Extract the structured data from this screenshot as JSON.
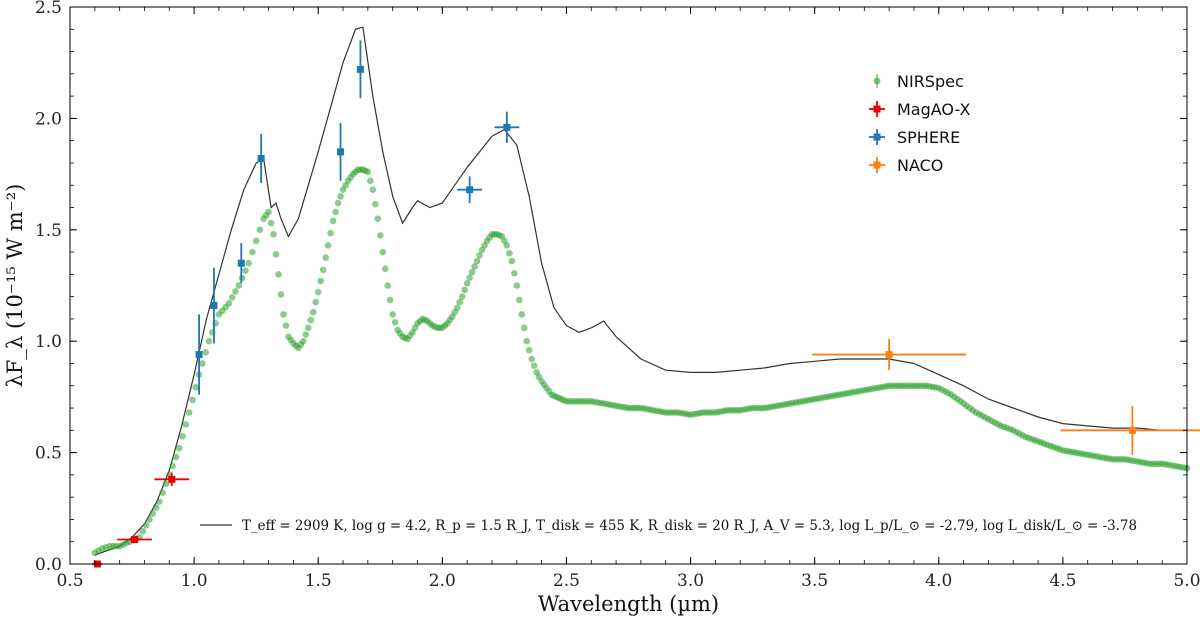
{
  "chart_data": {
    "type": "scatter",
    "title": "",
    "xlabel": "Wavelength (µm)",
    "ylabel": "λF_λ (10⁻¹⁵ W m⁻²)",
    "xlim": [
      0.5,
      5.0
    ],
    "ylim": [
      0.0,
      2.5
    ],
    "xticks": [
      0.5,
      1.0,
      1.5,
      2.0,
      2.5,
      3.0,
      3.5,
      4.0,
      4.5,
      5.0
    ],
    "xtick_labels": [
      "0.5",
      "1.0",
      "1.5",
      "2.0",
      "2.5",
      "3.0",
      "3.5",
      "4.0",
      "4.5",
      "5.0"
    ],
    "yticks": [
      0.0,
      0.5,
      1.0,
      1.5,
      2.0,
      2.5
    ],
    "ytick_labels": [
      "0.0",
      "0.5",
      "1.0",
      "1.5",
      "2.0",
      "2.5"
    ],
    "grid": false,
    "legend_position": "upper-right",
    "model": {
      "label": "T_eff = 2909 K, log g = 4.2, R_p = 1.5 R_J, T_disk = 455 K, R_disk = 20 R_J, A_V = 5.3, log L_p/L_⊙ = -2.79, log L_disk/L_⊙ = -3.78",
      "color": "#333333",
      "x": [
        0.6,
        0.65,
        0.7,
        0.75,
        0.8,
        0.85,
        0.9,
        0.95,
        1.0,
        1.05,
        1.1,
        1.15,
        1.2,
        1.25,
        1.28,
        1.31,
        1.33,
        1.35,
        1.38,
        1.42,
        1.46,
        1.5,
        1.55,
        1.6,
        1.65,
        1.68,
        1.72,
        1.76,
        1.8,
        1.84,
        1.88,
        1.9,
        1.95,
        2.0,
        2.05,
        2.1,
        2.15,
        2.2,
        2.25,
        2.3,
        2.35,
        2.4,
        2.45,
        2.5,
        2.55,
        2.6,
        2.65,
        2.7,
        2.8,
        2.9,
        3.0,
        3.1,
        3.2,
        3.3,
        3.4,
        3.5,
        3.6,
        3.7,
        3.8,
        3.9,
        4.0,
        4.1,
        4.2,
        4.3,
        4.4,
        4.5,
        4.6,
        4.7,
        4.8,
        4.9,
        5.0
      ],
      "y": [
        0.04,
        0.06,
        0.08,
        0.12,
        0.18,
        0.28,
        0.42,
        0.62,
        0.85,
        1.1,
        1.3,
        1.5,
        1.68,
        1.8,
        1.82,
        1.6,
        1.62,
        1.55,
        1.47,
        1.55,
        1.7,
        1.85,
        2.05,
        2.25,
        2.4,
        2.41,
        2.1,
        1.85,
        1.65,
        1.53,
        1.6,
        1.63,
        1.6,
        1.62,
        1.7,
        1.78,
        1.85,
        1.92,
        1.95,
        1.88,
        1.65,
        1.35,
        1.15,
        1.07,
        1.04,
        1.06,
        1.09,
        1.02,
        0.92,
        0.87,
        0.86,
        0.86,
        0.87,
        0.88,
        0.9,
        0.91,
        0.92,
        0.92,
        0.92,
        0.9,
        0.85,
        0.8,
        0.74,
        0.7,
        0.66,
        0.63,
        0.62,
        0.61,
        0.61,
        0.6,
        0.6
      ]
    },
    "series": [
      {
        "name": "NIRSpec",
        "color": "#2ca02c",
        "x": [
          0.6,
          0.63,
          0.66,
          0.7,
          0.74,
          0.78,
          0.82,
          0.86,
          0.9,
          0.94,
          0.98,
          1.02,
          1.06,
          1.1,
          1.14,
          1.18,
          1.22,
          1.25,
          1.28,
          1.3,
          1.32,
          1.34,
          1.36,
          1.38,
          1.4,
          1.42,
          1.44,
          1.46,
          1.48,
          1.5,
          1.52,
          1.54,
          1.56,
          1.58,
          1.6,
          1.62,
          1.64,
          1.66,
          1.68,
          1.7,
          1.72,
          1.74,
          1.76,
          1.78,
          1.8,
          1.82,
          1.84,
          1.86,
          1.88,
          1.9,
          1.92,
          1.94,
          1.96,
          1.98,
          2.0,
          2.02,
          2.04,
          2.06,
          2.08,
          2.1,
          2.12,
          2.14,
          2.16,
          2.18,
          2.2,
          2.22,
          2.24,
          2.26,
          2.28,
          2.3,
          2.32,
          2.34,
          2.36,
          2.38,
          2.4,
          2.42,
          2.44,
          2.46,
          2.48,
          2.5,
          2.55,
          2.6,
          2.65,
          2.7,
          2.75,
          2.8,
          2.85,
          2.9,
          2.95,
          3.0,
          3.05,
          3.1,
          3.15,
          3.2,
          3.25,
          3.3,
          3.35,
          3.4,
          3.45,
          3.5,
          3.55,
          3.6,
          3.65,
          3.7,
          3.75,
          3.8,
          3.85,
          3.9,
          3.95,
          4.0,
          4.05,
          4.1,
          4.15,
          4.2,
          4.25,
          4.3,
          4.35,
          4.4,
          4.45,
          4.5,
          4.55,
          4.6,
          4.65,
          4.7,
          4.75,
          4.8,
          4.85,
          4.9,
          4.95,
          5.0
        ],
        "y": [
          0.05,
          0.07,
          0.08,
          0.08,
          0.1,
          0.12,
          0.2,
          0.28,
          0.4,
          0.52,
          0.68,
          0.85,
          1.0,
          1.12,
          1.17,
          1.25,
          1.35,
          1.45,
          1.55,
          1.58,
          1.48,
          1.3,
          1.12,
          1.02,
          0.99,
          0.97,
          1.0,
          1.06,
          1.13,
          1.22,
          1.32,
          1.43,
          1.54,
          1.62,
          1.68,
          1.72,
          1.75,
          1.77,
          1.77,
          1.76,
          1.68,
          1.55,
          1.4,
          1.25,
          1.12,
          1.05,
          1.02,
          1.01,
          1.04,
          1.08,
          1.1,
          1.09,
          1.07,
          1.06,
          1.06,
          1.08,
          1.11,
          1.15,
          1.2,
          1.26,
          1.31,
          1.36,
          1.41,
          1.45,
          1.48,
          1.48,
          1.47,
          1.43,
          1.36,
          1.25,
          1.12,
          1.0,
          0.92,
          0.86,
          0.82,
          0.79,
          0.76,
          0.75,
          0.74,
          0.73,
          0.73,
          0.73,
          0.72,
          0.71,
          0.7,
          0.7,
          0.69,
          0.68,
          0.68,
          0.67,
          0.68,
          0.68,
          0.69,
          0.69,
          0.7,
          0.7,
          0.71,
          0.72,
          0.73,
          0.74,
          0.75,
          0.76,
          0.77,
          0.78,
          0.79,
          0.8,
          0.8,
          0.8,
          0.8,
          0.79,
          0.76,
          0.72,
          0.68,
          0.65,
          0.62,
          0.6,
          0.57,
          0.55,
          0.53,
          0.51,
          0.5,
          0.49,
          0.48,
          0.47,
          0.47,
          0.46,
          0.45,
          0.45,
          0.44,
          0.43
        ]
      },
      {
        "name": "MagAO-X",
        "color": "#ee0000",
        "points": [
          {
            "x": 0.61,
            "y": 0.0,
            "xerr": 0.02,
            "yerr": 0.01
          },
          {
            "x": 0.76,
            "y": 0.11,
            "xerr": 0.07,
            "yerr": 0.01
          },
          {
            "x": 0.91,
            "y": 0.38,
            "xerr": 0.07,
            "yerr": 0.03
          }
        ]
      },
      {
        "name": "SPHERE",
        "color": "#1f77b4",
        "points": [
          {
            "x": 1.02,
            "y": 0.94,
            "xerr": 0.01,
            "yerr": 0.18
          },
          {
            "x": 1.08,
            "y": 1.16,
            "xerr": 0.01,
            "yerr": 0.17
          },
          {
            "x": 1.19,
            "y": 1.35,
            "xerr": 0.01,
            "yerr": 0.09
          },
          {
            "x": 1.27,
            "y": 1.82,
            "xerr": 0.01,
            "yerr": 0.11
          },
          {
            "x": 1.59,
            "y": 1.85,
            "xerr": 0.01,
            "yerr": 0.13
          },
          {
            "x": 1.67,
            "y": 2.22,
            "xerr": 0.01,
            "yerr": 0.13
          },
          {
            "x": 2.11,
            "y": 1.68,
            "xerr": 0.05,
            "yerr": 0.06
          },
          {
            "x": 2.26,
            "y": 1.96,
            "xerr": 0.05,
            "yerr": 0.07
          }
        ]
      },
      {
        "name": "NACO",
        "color": "#ff7f0e",
        "points": [
          {
            "x": 3.8,
            "y": 0.94,
            "xerr": 0.31,
            "yerr": 0.07
          },
          {
            "x": 4.78,
            "y": 0.6,
            "xerr": 0.29,
            "yerr": 0.11
          }
        ]
      }
    ]
  }
}
